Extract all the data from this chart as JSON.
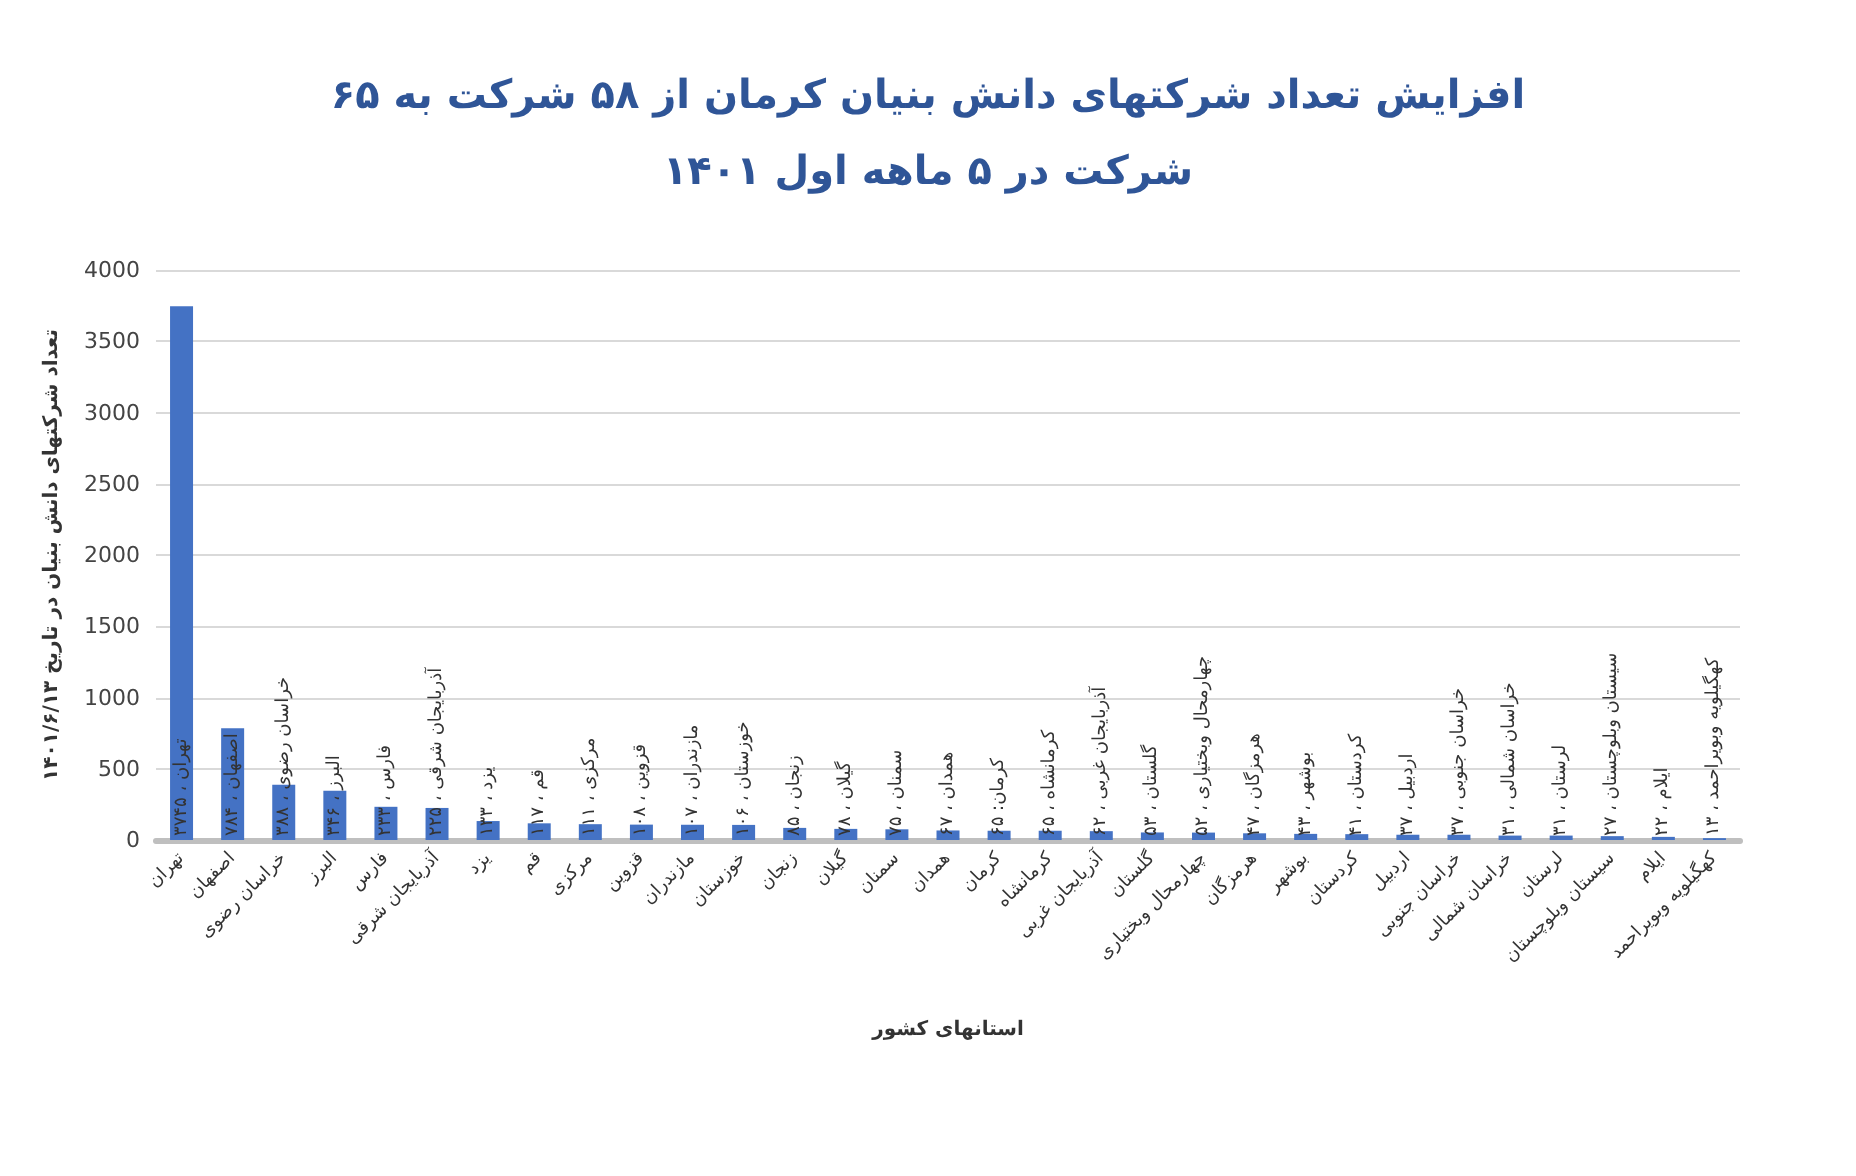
{
  "chart_data": {
    "type": "bar",
    "title": "افزایش تعداد شرکتهای دانش بنیان کرمان از ۵۸ شرکت به ۶۵ شرکت در ۵ ماهه اول ۱۴۰۱",
    "xlabel": "استانهای کشور",
    "ylabel": "تعداد شرکتهای دانش بنیان در تاریخ ۱۴۰۱/۶/۱۳",
    "categories": [
      "تهران",
      "اصفهان",
      "خراسان رضوی",
      "البرز",
      "فارس",
      "آذربایجان شرقی",
      "یزد",
      "قم",
      "مرکزی",
      "قزوین",
      "مازندران",
      "خوزستان",
      "زنجان",
      "گیلان",
      "سمنان",
      "همدان",
      "کرمان",
      "کرمانشاه",
      "آذربایجان غربی",
      "گلستان",
      "چهارمحال وبختیاری",
      "هرمزگان",
      "بوشهر",
      "کردستان",
      "اردبیل",
      "خراسان جنوبی",
      "خراسان شمالی",
      "لرستان",
      "سیستان وبلوچستان",
      "ایلام",
      "کهگیلویه وبویراحمد"
    ],
    "values": [
      3745,
      784,
      388,
      346,
      233,
      225,
      133,
      117,
      111,
      108,
      107,
      106,
      85,
      78,
      75,
      67,
      65,
      65,
      62,
      53,
      52,
      47,
      43,
      41,
      37,
      37,
      31,
      31,
      27,
      22,
      13
    ],
    "value_labels": [
      "تهران ، ۳۷۴۵",
      "اصفهان ، ۷۸۴",
      "خراسان رضوی ، ۳۸۸",
      "البرز ، ۳۴۶",
      "فارس ، ۲۳۳",
      "آذربایجان شرقی ، ۲۲۵",
      "یزد ، ۱۳۳",
      "قم ، ۱۱۷",
      "مرکزی ، ۱۱۱",
      "قزوین ، ۱۰۸",
      "مازندران ، ۱۰۷",
      "خوزستان ، ۱۰۶",
      "زنجان ، ۸۵",
      "گیلان ، ۷۸",
      "سمنان ، ۷۵",
      "همدان ، ۶۷",
      "کرمان: ۶۵",
      "کرمانشاه ، ۶۵",
      "آذربایجان غربی ، ۶۲",
      "گلستان ، ۵۳",
      "چهارمحال وبختیاری ، ۵۲",
      "هرمزگان ، ۴۷",
      "بوشهر ، ۴۳",
      "کردستان ، ۴۱",
      "اردبیل ، ۳۷",
      "خراسان جنوبی ، ۳۷",
      "خراسان شمالی ، ۳۱",
      "لرستان ، ۳۱",
      "سیستان وبلوچستان ، ۲۷",
      "ایلام ، ۲۲",
      "کهگیلویه وبویراحمد ، ۱۳"
    ],
    "color": "#4472c4",
    "ylim": [
      0,
      4000
    ],
    "yticks": [
      0,
      500,
      1000,
      1500,
      2000,
      2500,
      3000,
      3500,
      4000
    ],
    "grid": "y"
  }
}
